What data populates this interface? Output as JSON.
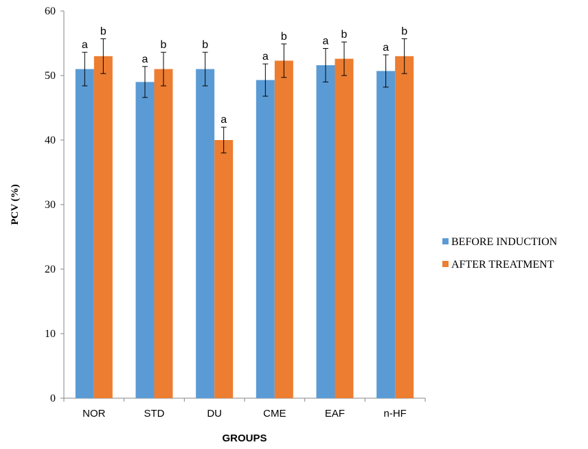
{
  "chart_data": {
    "type": "bar",
    "title": "",
    "xlabel": "GROUPS",
    "ylabel": "PCV (%)",
    "ylim": [
      0,
      60
    ],
    "yticks": [
      0,
      10,
      20,
      30,
      40,
      50,
      60
    ],
    "grid": false,
    "legend_position": "right",
    "categories": [
      "NOR",
      "STD",
      "DU",
      "CME",
      "EAF",
      "n-HF"
    ],
    "series": [
      {
        "name": "BEFORE INDUCTION",
        "color": "#5B9BD5",
        "values": [
          51.0,
          49.0,
          51.0,
          49.3,
          51.6,
          50.7
        ],
        "errors": [
          2.6,
          2.4,
          2.6,
          2.5,
          2.6,
          2.5
        ],
        "labels": [
          "a",
          "a",
          "b",
          "a",
          "a",
          "a"
        ]
      },
      {
        "name": "AFTER TREATMENT",
        "color": "#ED7D31",
        "values": [
          53.0,
          51.0,
          40.0,
          52.3,
          52.6,
          53.0
        ],
        "errors": [
          2.7,
          2.6,
          2.0,
          2.6,
          2.6,
          2.7
        ],
        "labels": [
          "b",
          "b",
          "a",
          "b",
          "b",
          "b"
        ]
      }
    ]
  }
}
